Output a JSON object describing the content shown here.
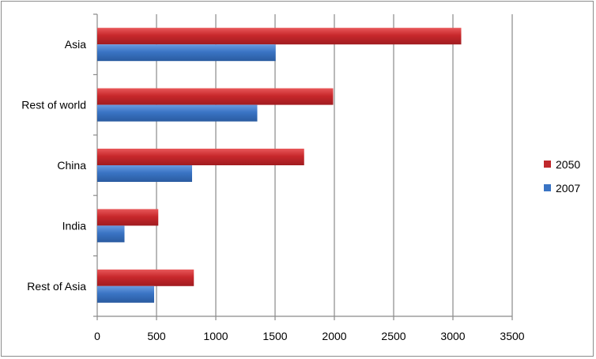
{
  "chart_data": {
    "type": "bar",
    "orientation": "horizontal",
    "categories": [
      "Asia",
      "Rest of world",
      "China",
      "India",
      "Rest of Asia"
    ],
    "series": [
      {
        "name": "2050",
        "values": [
          3070,
          1990,
          1745,
          515,
          815
        ],
        "color": "#c0282c"
      },
      {
        "name": "2007",
        "values": [
          1505,
          1350,
          800,
          230,
          480
        ],
        "color": "#3a74c4"
      }
    ],
    "title": "",
    "xlabel": "",
    "ylabel": "",
    "xlim": [
      0,
      3500
    ],
    "x_ticks": [
      0,
      500,
      1000,
      1500,
      2000,
      2500,
      3000,
      3500
    ],
    "grid": "vertical",
    "legend_position": "right"
  }
}
